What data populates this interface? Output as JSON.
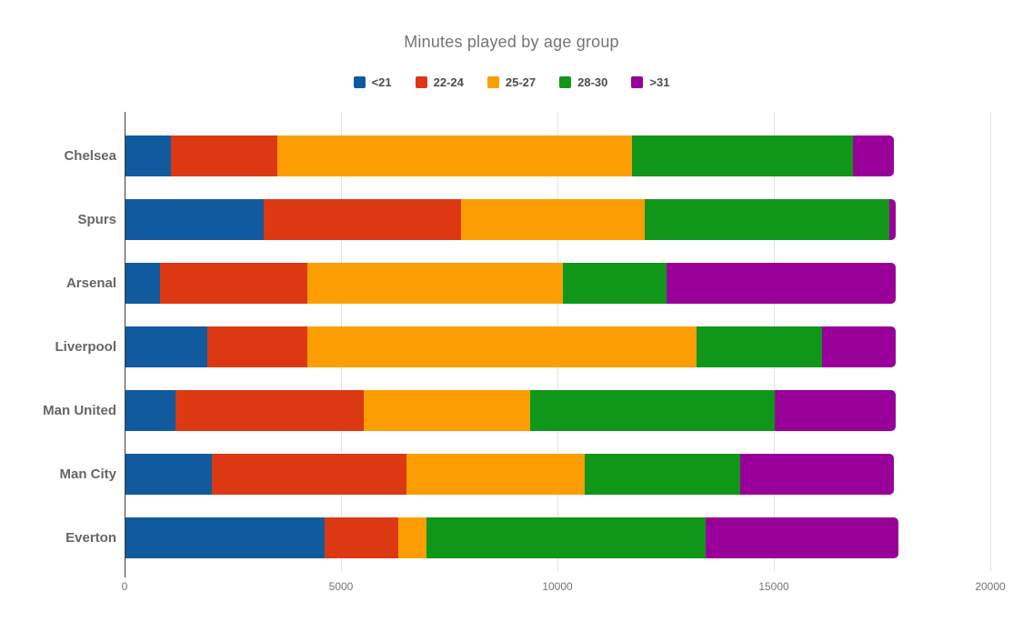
{
  "chart_data": {
    "type": "bar",
    "orientation": "horizontal",
    "stacked": true,
    "title": "Minutes played by age group",
    "categories": [
      "Chelsea",
      "Spurs",
      "Arsenal",
      "Liverpool",
      "Man United",
      "Man City",
      "Everton"
    ],
    "series": [
      {
        "name": "<21",
        "color": "#125a9e",
        "values": [
          1050,
          3200,
          800,
          1900,
          1150,
          2000,
          4600
        ]
      },
      {
        "name": "22-24",
        "color": "#dc3912",
        "values": [
          2450,
          4550,
          3400,
          2300,
          4350,
          4500,
          1700
        ]
      },
      {
        "name": "25-27",
        "color": "#fc9e03",
        "values": [
          8200,
          4250,
          5900,
          9000,
          3850,
          4100,
          650
        ]
      },
      {
        "name": "28-30",
        "color": "#109618",
        "values": [
          5100,
          5650,
          2400,
          2900,
          5650,
          3600,
          6450
        ]
      },
      {
        "name": ">31",
        "color": "#990099",
        "values": [
          950,
          150,
          5300,
          1700,
          2800,
          3550,
          4450
        ]
      }
    ],
    "x_axis": {
      "ticks": [
        0,
        5000,
        10000,
        15000,
        20000
      ],
      "max": 20000
    },
    "grid": true,
    "legend_position": "top",
    "colors": {
      "title_text": "#757575",
      "category_text": "#666666",
      "tick_text": "#757575",
      "axis_line": "#3c3c3c",
      "gridline": "#e2e2e2",
      "background": "#ffffff"
    }
  }
}
